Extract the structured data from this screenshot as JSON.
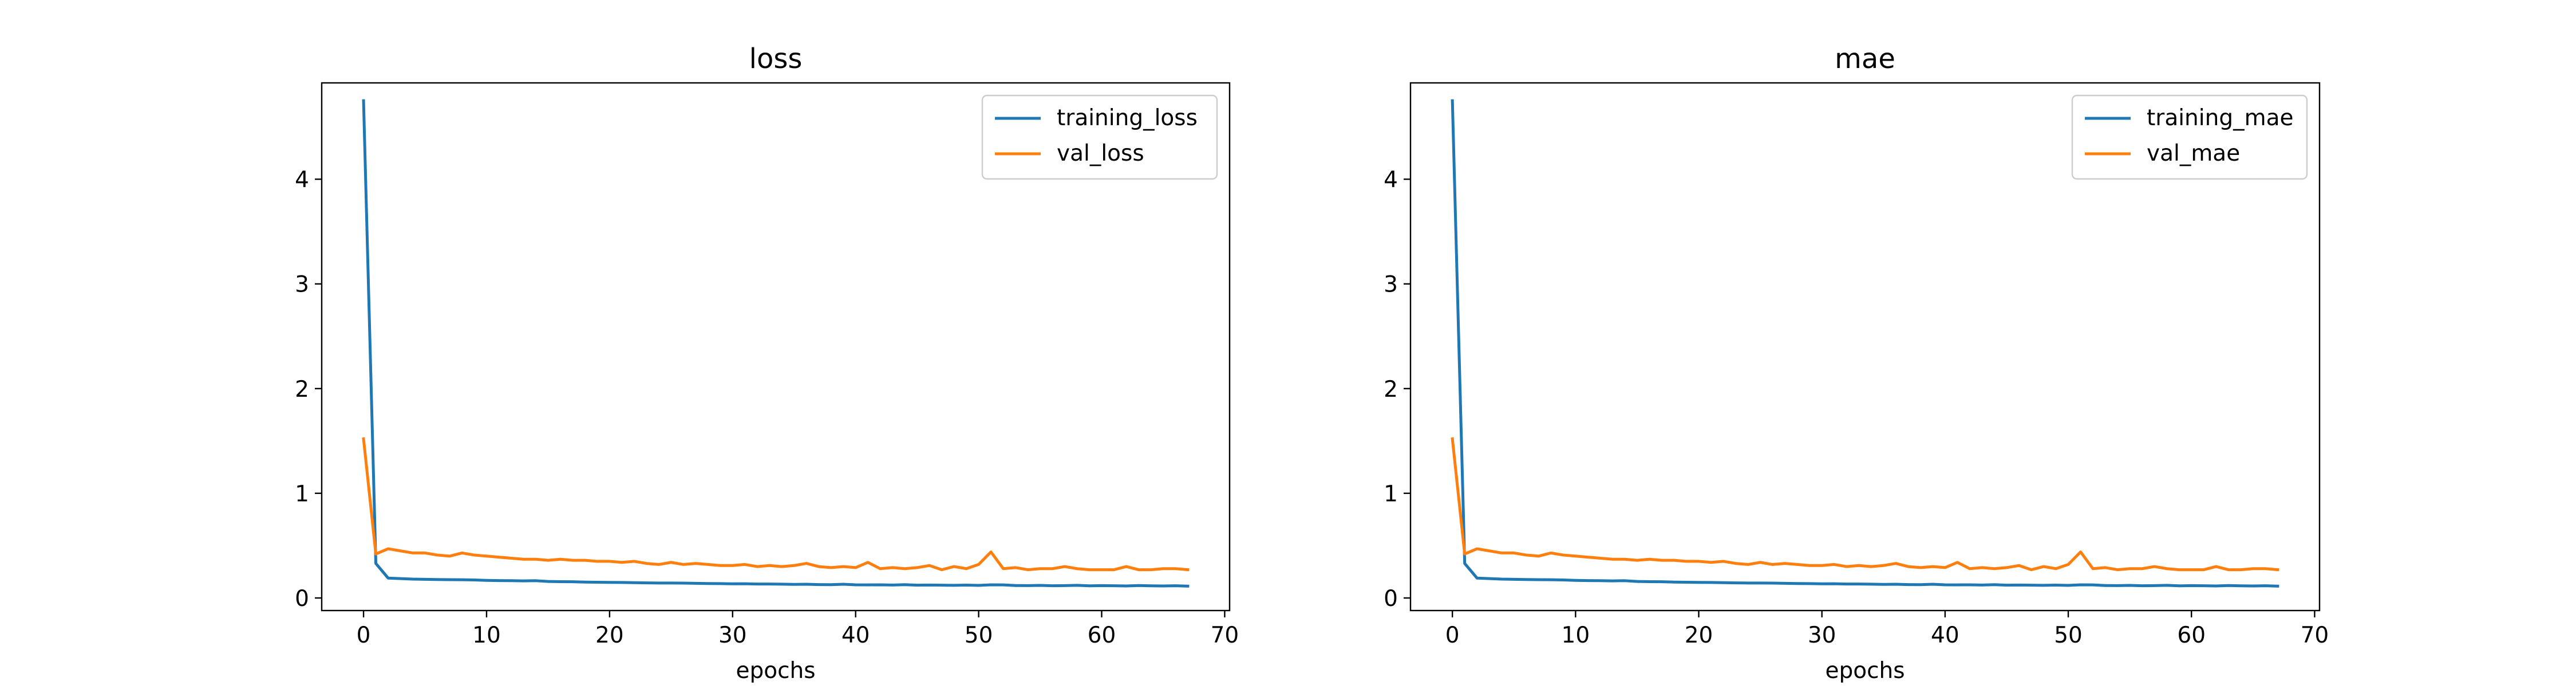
{
  "chart_data": [
    {
      "type": "line",
      "title": "loss",
      "xlabel": "epochs",
      "ylabel": "",
      "xlim": [
        -3.4,
        70.4
      ],
      "ylim": [
        -0.12,
        4.92
      ],
      "xticks": [
        0,
        10,
        20,
        30,
        40,
        50,
        60,
        70
      ],
      "yticks": [
        0,
        1,
        2,
        3,
        4
      ],
      "grid": false,
      "legend": "top-right",
      "series": [
        {
          "name": "training_loss",
          "color": "#1f77b4",
          "x": [
            0,
            1,
            2,
            3,
            4,
            5,
            6,
            7,
            8,
            9,
            10,
            11,
            12,
            13,
            14,
            15,
            16,
            17,
            18,
            19,
            20,
            21,
            22,
            23,
            24,
            25,
            26,
            27,
            28,
            29,
            30,
            31,
            32,
            33,
            34,
            35,
            36,
            37,
            38,
            39,
            40,
            41,
            42,
            43,
            44,
            45,
            46,
            47,
            48,
            49,
            50,
            51,
            52,
            53,
            54,
            55,
            56,
            57,
            58,
            59,
            60,
            61,
            62,
            63,
            64,
            65,
            66,
            67
          ],
          "values": [
            4.75,
            0.33,
            0.19,
            0.185,
            0.18,
            0.178,
            0.176,
            0.175,
            0.174,
            0.172,
            0.168,
            0.166,
            0.165,
            0.163,
            0.165,
            0.158,
            0.156,
            0.155,
            0.152,
            0.15,
            0.149,
            0.148,
            0.146,
            0.144,
            0.143,
            0.143,
            0.142,
            0.14,
            0.138,
            0.137,
            0.135,
            0.136,
            0.133,
            0.133,
            0.132,
            0.13,
            0.131,
            0.128,
            0.127,
            0.131,
            0.126,
            0.125,
            0.126,
            0.124,
            0.127,
            0.122,
            0.124,
            0.122,
            0.121,
            0.123,
            0.12,
            0.126,
            0.125,
            0.119,
            0.118,
            0.12,
            0.117,
            0.118,
            0.121,
            0.116,
            0.118,
            0.117,
            0.115,
            0.119,
            0.116,
            0.115,
            0.117,
            0.113
          ]
        },
        {
          "name": "val_loss",
          "color": "#ff7f0e",
          "x": [
            0,
            1,
            2,
            3,
            4,
            5,
            6,
            7,
            8,
            9,
            10,
            11,
            12,
            13,
            14,
            15,
            16,
            17,
            18,
            19,
            20,
            21,
            22,
            23,
            24,
            25,
            26,
            27,
            28,
            29,
            30,
            31,
            32,
            33,
            34,
            35,
            36,
            37,
            38,
            39,
            40,
            41,
            42,
            43,
            44,
            45,
            46,
            47,
            48,
            49,
            50,
            51,
            52,
            53,
            54,
            55,
            56,
            57,
            58,
            59,
            60,
            61,
            62,
            63,
            64,
            65,
            66,
            67
          ],
          "values": [
            1.52,
            0.42,
            0.47,
            0.45,
            0.43,
            0.43,
            0.41,
            0.4,
            0.43,
            0.41,
            0.4,
            0.39,
            0.38,
            0.37,
            0.37,
            0.36,
            0.37,
            0.36,
            0.36,
            0.35,
            0.35,
            0.34,
            0.35,
            0.33,
            0.32,
            0.34,
            0.32,
            0.33,
            0.32,
            0.31,
            0.31,
            0.32,
            0.3,
            0.31,
            0.3,
            0.31,
            0.33,
            0.3,
            0.29,
            0.3,
            0.29,
            0.34,
            0.28,
            0.29,
            0.28,
            0.29,
            0.31,
            0.27,
            0.3,
            0.28,
            0.32,
            0.44,
            0.28,
            0.29,
            0.27,
            0.28,
            0.28,
            0.3,
            0.28,
            0.27,
            0.27,
            0.27,
            0.3,
            0.27,
            0.27,
            0.28,
            0.28,
            0.27
          ]
        }
      ]
    },
    {
      "type": "line",
      "title": "mae",
      "xlabel": "epochs",
      "ylabel": "",
      "xlim": [
        -3.4,
        70.4
      ],
      "ylim": [
        -0.12,
        4.92
      ],
      "xticks": [
        0,
        10,
        20,
        30,
        40,
        50,
        60,
        70
      ],
      "yticks": [
        0,
        1,
        2,
        3,
        4
      ],
      "grid": false,
      "legend": "top-right",
      "series": [
        {
          "name": "training_mae",
          "color": "#1f77b4",
          "x": [
            0,
            1,
            2,
            3,
            4,
            5,
            6,
            7,
            8,
            9,
            10,
            11,
            12,
            13,
            14,
            15,
            16,
            17,
            18,
            19,
            20,
            21,
            22,
            23,
            24,
            25,
            26,
            27,
            28,
            29,
            30,
            31,
            32,
            33,
            34,
            35,
            36,
            37,
            38,
            39,
            40,
            41,
            42,
            43,
            44,
            45,
            46,
            47,
            48,
            49,
            50,
            51,
            52,
            53,
            54,
            55,
            56,
            57,
            58,
            59,
            60,
            61,
            62,
            63,
            64,
            65,
            66,
            67
          ],
          "values": [
            4.75,
            0.33,
            0.19,
            0.185,
            0.18,
            0.178,
            0.176,
            0.175,
            0.174,
            0.172,
            0.168,
            0.166,
            0.165,
            0.163,
            0.165,
            0.158,
            0.156,
            0.155,
            0.152,
            0.15,
            0.149,
            0.148,
            0.146,
            0.144,
            0.143,
            0.143,
            0.142,
            0.14,
            0.138,
            0.137,
            0.135,
            0.136,
            0.133,
            0.133,
            0.132,
            0.13,
            0.131,
            0.128,
            0.127,
            0.131,
            0.126,
            0.125,
            0.126,
            0.124,
            0.127,
            0.122,
            0.124,
            0.122,
            0.121,
            0.123,
            0.12,
            0.126,
            0.125,
            0.119,
            0.118,
            0.12,
            0.117,
            0.118,
            0.121,
            0.116,
            0.118,
            0.117,
            0.115,
            0.119,
            0.116,
            0.115,
            0.117,
            0.113
          ]
        },
        {
          "name": "val_mae",
          "color": "#ff7f0e",
          "x": [
            0,
            1,
            2,
            3,
            4,
            5,
            6,
            7,
            8,
            9,
            10,
            11,
            12,
            13,
            14,
            15,
            16,
            17,
            18,
            19,
            20,
            21,
            22,
            23,
            24,
            25,
            26,
            27,
            28,
            29,
            30,
            31,
            32,
            33,
            34,
            35,
            36,
            37,
            38,
            39,
            40,
            41,
            42,
            43,
            44,
            45,
            46,
            47,
            48,
            49,
            50,
            51,
            52,
            53,
            54,
            55,
            56,
            57,
            58,
            59,
            60,
            61,
            62,
            63,
            64,
            65,
            66,
            67
          ],
          "values": [
            1.52,
            0.42,
            0.47,
            0.45,
            0.43,
            0.43,
            0.41,
            0.4,
            0.43,
            0.41,
            0.4,
            0.39,
            0.38,
            0.37,
            0.37,
            0.36,
            0.37,
            0.36,
            0.36,
            0.35,
            0.35,
            0.34,
            0.35,
            0.33,
            0.32,
            0.34,
            0.32,
            0.33,
            0.32,
            0.31,
            0.31,
            0.32,
            0.3,
            0.31,
            0.3,
            0.31,
            0.33,
            0.3,
            0.29,
            0.3,
            0.29,
            0.34,
            0.28,
            0.29,
            0.28,
            0.29,
            0.31,
            0.27,
            0.3,
            0.28,
            0.32,
            0.44,
            0.28,
            0.29,
            0.27,
            0.28,
            0.28,
            0.3,
            0.28,
            0.27,
            0.27,
            0.27,
            0.3,
            0.27,
            0.27,
            0.28,
            0.28,
            0.27
          ]
        }
      ]
    }
  ]
}
